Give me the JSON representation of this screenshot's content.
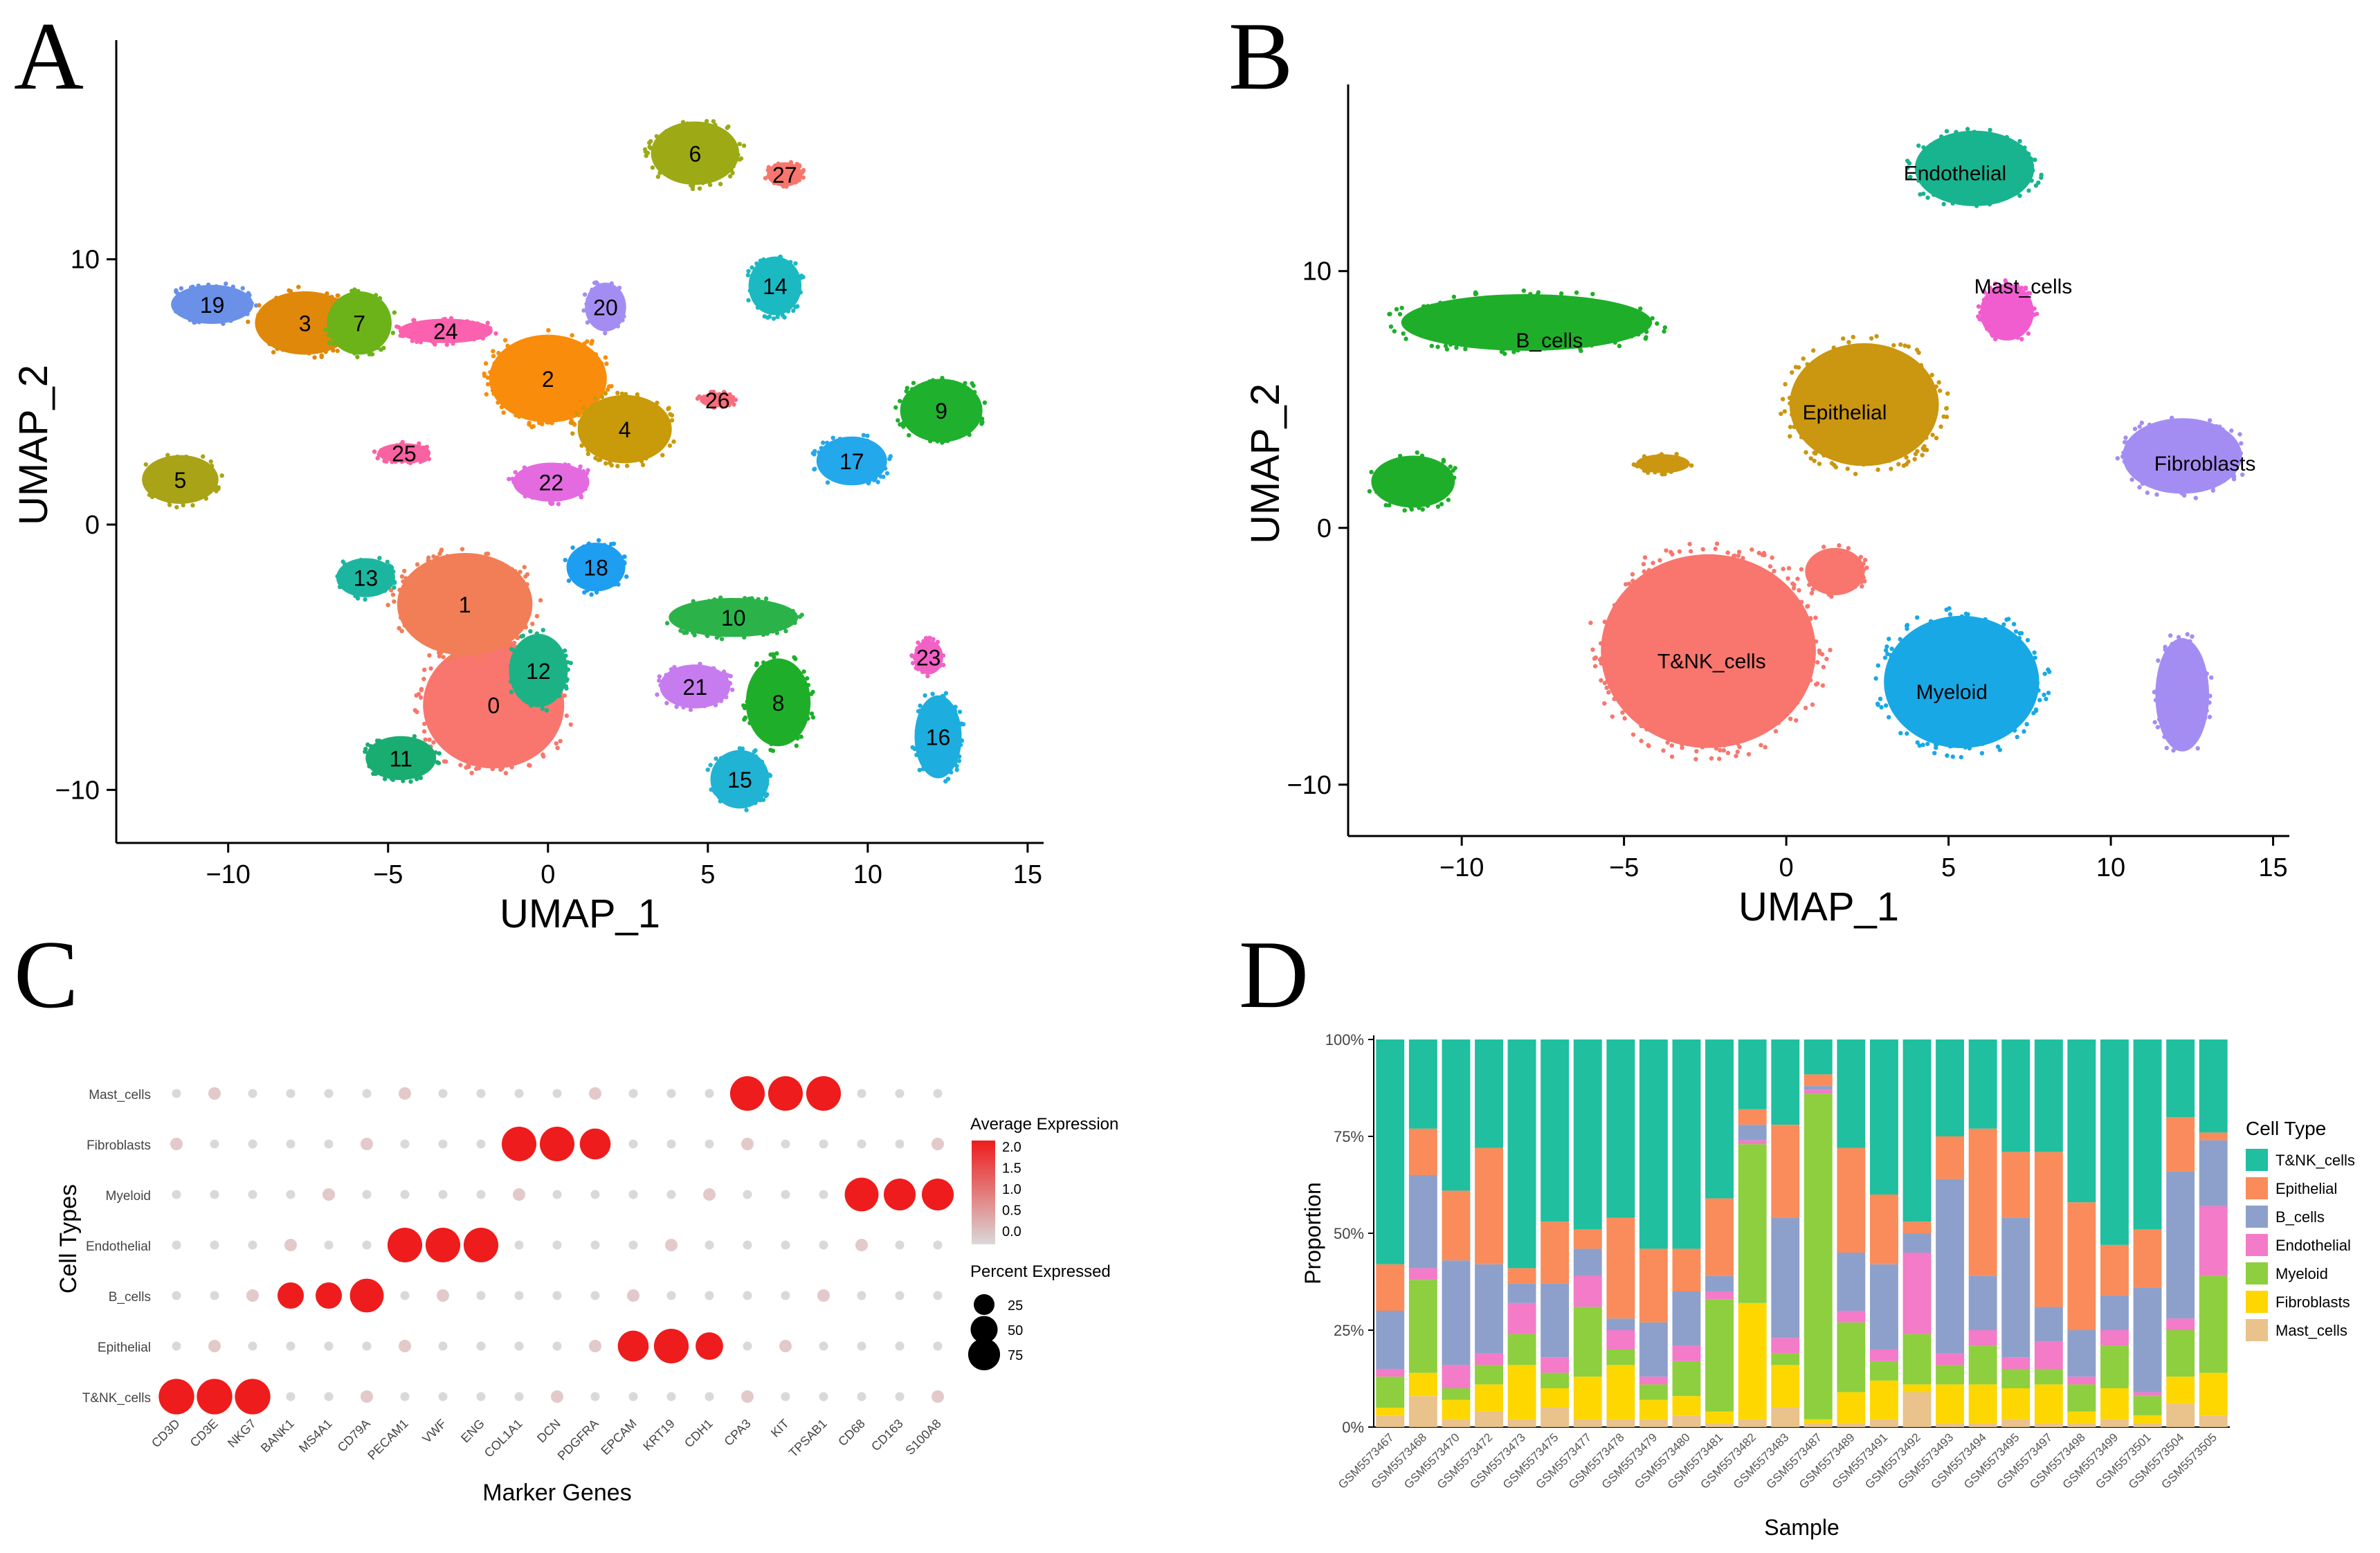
{
  "colors": {
    "c0": "#F8766D",
    "c1": "#F17E56",
    "c2": "#F98C0A",
    "c3": "#E0880A",
    "c4": "#C99A09",
    "c5": "#A9A317",
    "c6": "#9DAA15",
    "c7": "#6CB31A",
    "c8": "#1FAE2A",
    "c9": "#1FB02E",
    "c10": "#2BB34A",
    "c11": "#19AD72",
    "c12": "#1CB286",
    "c13": "#1CB6A0",
    "c14": "#1BB9C2",
    "c15": "#21B3D3",
    "c16": "#1DAEDF",
    "c17": "#23A8EC",
    "c18": "#1E9EF0",
    "c19": "#6A90E8",
    "c20": "#A48DF2",
    "c21": "#C67CEE",
    "c22": "#E46AE0",
    "c23": "#F261C6",
    "c24": "#FB61AE",
    "c25": "#F962A0",
    "c26": "#F86C7C",
    "c27": "#F8766D",
    "tnk": "#F8766D",
    "epi": "#CB9610",
    "bc": "#1FAE2A",
    "myl": "#18A8E6",
    "endo": "#18B48F",
    "mast": "#F15DCF",
    "fib": "#A48DF2",
    "barTNK": "#1FBFA0",
    "barEpi": "#F98C5A",
    "barB": "#8DA0CB",
    "barEndo": "#F37BC7",
    "barMyl": "#8DCF3F",
    "barFib": "#FFD700",
    "barMast": "#E9C28C",
    "dotHigh": "#EE1C1C",
    "dotLow": "#D9D9D9"
  },
  "chart_data": [
    {
      "panel": "A",
      "type": "scatter",
      "title": "",
      "xlabel": "UMAP_1",
      "ylabel": "UMAP_2",
      "xlim": [
        -13.5,
        15.5
      ],
      "ylim": [
        -12,
        18
      ],
      "xticks": [
        -10,
        -5,
        0,
        5,
        10,
        15
      ],
      "yticks": [
        -10,
        0,
        10
      ],
      "x_tick_labels": [
        "−10",
        "−5",
        "0",
        "5",
        "10",
        "15"
      ],
      "y_tick_labels": [
        "−10",
        "0",
        "10"
      ],
      "clusters": [
        {
          "id": "0",
          "x": -1.7,
          "y": -6.8,
          "rx": 2.4,
          "ry": 2.6,
          "color": "c0"
        },
        {
          "id": "1",
          "x": -2.6,
          "y": -3.0,
          "rx": 2.3,
          "ry": 2.1,
          "color": "c1"
        },
        {
          "id": "12",
          "x": -0.3,
          "y": -5.5,
          "rx": 1.0,
          "ry": 1.5,
          "color": "c12"
        },
        {
          "id": "11",
          "x": -4.6,
          "y": -8.8,
          "rx": 1.2,
          "ry": 0.9,
          "color": "c11"
        },
        {
          "id": "13",
          "x": -5.7,
          "y": -2.0,
          "rx": 1.0,
          "ry": 0.8,
          "color": "c13"
        },
        {
          "id": "18",
          "x": 1.5,
          "y": -1.6,
          "rx": 1.0,
          "ry": 1.0,
          "color": "c18"
        },
        {
          "id": "10",
          "x": 5.8,
          "y": -3.5,
          "rx": 2.2,
          "ry": 0.8,
          "color": "c10"
        },
        {
          "id": "8",
          "x": 7.2,
          "y": -6.7,
          "rx": 1.1,
          "ry": 1.8,
          "color": "c8"
        },
        {
          "id": "21",
          "x": 4.6,
          "y": -6.1,
          "rx": 1.2,
          "ry": 0.9,
          "color": "c21"
        },
        {
          "id": "15",
          "x": 6.0,
          "y": -9.6,
          "rx": 1.0,
          "ry": 1.2,
          "color": "c15"
        },
        {
          "id": "23",
          "x": 11.9,
          "y": -5.0,
          "rx": 0.5,
          "ry": 0.7,
          "color": "c23"
        },
        {
          "id": "16",
          "x": 12.2,
          "y": -8.0,
          "rx": 0.8,
          "ry": 1.7,
          "color": "c16"
        },
        {
          "id": "6",
          "x": 4.6,
          "y": 14.0,
          "rx": 1.5,
          "ry": 1.3,
          "color": "c6"
        },
        {
          "id": "27",
          "x": 7.4,
          "y": 13.2,
          "rx": 0.6,
          "ry": 0.5,
          "color": "c27"
        },
        {
          "id": "14",
          "x": 7.1,
          "y": 9.0,
          "rx": 0.9,
          "ry": 1.2,
          "color": "c14"
        },
        {
          "id": "20",
          "x": 1.8,
          "y": 8.2,
          "rx": 0.7,
          "ry": 1.0,
          "color": "c20"
        },
        {
          "id": "2",
          "x": 0.0,
          "y": 5.5,
          "rx": 2.0,
          "ry": 1.8,
          "color": "c2"
        },
        {
          "id": "4",
          "x": 2.4,
          "y": 3.6,
          "rx": 1.6,
          "ry": 1.4,
          "color": "c4"
        },
        {
          "id": "26",
          "x": 5.3,
          "y": 4.7,
          "rx": 0.6,
          "ry": 0.3,
          "color": "c26"
        },
        {
          "id": "22",
          "x": 0.1,
          "y": 1.6,
          "rx": 1.3,
          "ry": 0.8,
          "color": "c22"
        },
        {
          "id": "25",
          "x": -4.5,
          "y": 2.7,
          "rx": 0.9,
          "ry": 0.4,
          "color": "c25"
        },
        {
          "id": "5",
          "x": -11.5,
          "y": 1.7,
          "rx": 1.3,
          "ry": 1.0,
          "color": "c5"
        },
        {
          "id": "19",
          "x": -10.5,
          "y": 8.3,
          "rx": 1.4,
          "ry": 0.8,
          "color": "c19"
        },
        {
          "id": "3",
          "x": -7.6,
          "y": 7.6,
          "rx": 1.7,
          "ry": 1.3,
          "color": "c3"
        },
        {
          "id": "7",
          "x": -5.9,
          "y": 7.6,
          "rx": 1.1,
          "ry": 1.3,
          "color": "c7"
        },
        {
          "id": "24",
          "x": -3.2,
          "y": 7.3,
          "rx": 1.6,
          "ry": 0.5,
          "color": "c24"
        },
        {
          "id": "9",
          "x": 12.3,
          "y": 4.3,
          "rx": 1.4,
          "ry": 1.3,
          "color": "c9"
        },
        {
          "id": "17",
          "x": 9.5,
          "y": 2.4,
          "rx": 1.2,
          "ry": 1.0,
          "color": "c17"
        }
      ]
    },
    {
      "panel": "B",
      "type": "scatter",
      "title": "",
      "xlabel": "UMAP_1",
      "ylabel": "UMAP_2",
      "xlim": [
        -13.5,
        15.5
      ],
      "ylim": [
        -12,
        17
      ],
      "xticks": [
        -10,
        -5,
        0,
        5,
        10,
        15
      ],
      "yticks": [
        -10,
        0,
        10
      ],
      "x_tick_labels": [
        "−10",
        "−5",
        "0",
        "5",
        "10",
        "15"
      ],
      "y_tick_labels": [
        "−10",
        "0",
        "10"
      ],
      "clusters": [
        {
          "id": "Endothelial",
          "x": 5.8,
          "y": 14.0,
          "rx": 2.0,
          "ry": 1.6,
          "color": "endo"
        },
        {
          "id": "Mast_cells",
          "x": 6.8,
          "y": 8.4,
          "rx": 0.9,
          "ry": 1.2,
          "color": "mast"
        },
        {
          "id": "B_cells",
          "x": -8.0,
          "y": 8.0,
          "rx": 4.2,
          "ry": 1.2,
          "color": "bc"
        },
        {
          "id": "B_cells_small",
          "x": -11.5,
          "y": 1.8,
          "rx": 1.4,
          "ry": 1.1,
          "color": "bc"
        },
        {
          "id": "Epithelial",
          "x": 2.4,
          "y": 4.8,
          "rx": 2.5,
          "ry": 2.6,
          "color": "epi"
        },
        {
          "id": "Epithelial_small",
          "x": -3.8,
          "y": 2.5,
          "rx": 0.9,
          "ry": 0.4,
          "color": "epi"
        },
        {
          "id": "Fibroblasts",
          "x": 12.2,
          "y": 2.8,
          "rx": 2.0,
          "ry": 1.6,
          "color": "fib"
        },
        {
          "id": "Fibroblasts_small",
          "x": 12.2,
          "y": -6.5,
          "rx": 0.9,
          "ry": 2.4,
          "color": "fib"
        },
        {
          "id": "T&NK_cells",
          "x": -2.4,
          "y": -4.8,
          "rx": 3.6,
          "ry": 4.1,
          "color": "tnk"
        },
        {
          "id": "T&NK_small",
          "x": 1.5,
          "y": -1.7,
          "rx": 1.0,
          "ry": 1.0,
          "color": "tnk"
        },
        {
          "id": "Myeloid",
          "x": 5.4,
          "y": -6.0,
          "rx": 2.6,
          "ry": 2.8,
          "color": "myl"
        }
      ],
      "labels": [
        {
          "text": "Endothelial",
          "x": 5.2,
          "y": 13.8
        },
        {
          "text": "Mast_cells",
          "x": 7.3,
          "y": 9.4
        },
        {
          "text": "B_cells",
          "x": -7.3,
          "y": 7.3
        },
        {
          "text": "Epithelial",
          "x": 1.8,
          "y": 4.5
        },
        {
          "text": "Fibroblasts",
          "x": 12.9,
          "y": 2.5
        },
        {
          "text": "T&NK_cells",
          "x": -2.3,
          "y": -5.2
        },
        {
          "text": "Myeloid",
          "x": 5.1,
          "y": -6.4
        }
      ]
    },
    {
      "panel": "C",
      "type": "dot",
      "title": "",
      "xlabel": "Marker Genes",
      "ylabel": "Cell Types",
      "genes": [
        "CD3D",
        "CD3E",
        "NKG7",
        "BANK1",
        "MS4A1",
        "CD79A",
        "PECAM1",
        "VWF",
        "ENG",
        "COL1A1",
        "DCN",
        "PDGFRA",
        "EPCAM",
        "KRT19",
        "CDH1",
        "CPA3",
        "KIT",
        "TPSAB1",
        "CD68",
        "CD163",
        "S100A8"
      ],
      "cell_types": [
        "T&NK_cells",
        "Epithelial",
        "B_cells",
        "Endothelial",
        "Myeloid",
        "Fibroblasts",
        "Mast_cells"
      ],
      "highlights": [
        {
          "cell_type": "T&NK_cells",
          "genes": [
            "CD3D",
            "CD3E",
            "NKG7"
          ],
          "expr": 2.0,
          "pct": 80
        },
        {
          "cell_type": "B_cells",
          "genes": [
            "BANK1",
            "MS4A1"
          ],
          "expr": 2.0,
          "pct": 35
        },
        {
          "cell_type": "B_cells",
          "genes": [
            "CD79A"
          ],
          "expr": 2.0,
          "pct": 70
        },
        {
          "cell_type": "Endothelial",
          "genes": [
            "PECAM1",
            "VWF",
            "ENG"
          ],
          "expr": 2.0,
          "pct": 75
        },
        {
          "cell_type": "Fibroblasts",
          "genes": [
            "COL1A1",
            "DCN"
          ],
          "expr": 2.0,
          "pct": 75
        },
        {
          "cell_type": "Fibroblasts",
          "genes": [
            "PDGFRA"
          ],
          "expr": 2.0,
          "pct": 55
        },
        {
          "cell_type": "Epithelial",
          "genes": [
            "EPCAM"
          ],
          "expr": 2.0,
          "pct": 55
        },
        {
          "cell_type": "Epithelial",
          "genes": [
            "KRT19"
          ],
          "expr": 2.0,
          "pct": 75
        },
        {
          "cell_type": "Epithelial",
          "genes": [
            "CDH1"
          ],
          "expr": 2.0,
          "pct": 40
        },
        {
          "cell_type": "Mast_cells",
          "genes": [
            "CPA3",
            "KIT",
            "TPSAB1"
          ],
          "expr": 2.0,
          "pct": 75
        },
        {
          "cell_type": "Myeloid",
          "genes": [
            "CD68"
          ],
          "expr": 2.0,
          "pct": 70
        },
        {
          "cell_type": "Myeloid",
          "genes": [
            "CD163",
            "S100A8"
          ],
          "expr": 2.0,
          "pct": 60
        }
      ],
      "legend_color_title": "Average Expression",
      "legend_color_ticks": [
        "2.0",
        "1.5",
        "1.0",
        "0.5",
        "0.0"
      ],
      "legend_size_title": "Percent Expressed",
      "legend_size_ticks": [
        "25",
        "50",
        "75"
      ]
    },
    {
      "panel": "D",
      "type": "bar",
      "stacked": true,
      "title": "",
      "xlabel": "Sample",
      "ylabel": "Proportion",
      "ylim": [
        0,
        1
      ],
      "y_tick_labels": [
        "0%",
        "25%",
        "50%",
        "75%",
        "100%"
      ],
      "categories": [
        "GSM5573467",
        "GSM5573468",
        "GSM5573470",
        "GSM5573472",
        "GSM5573473",
        "GSM5573475",
        "GSM5573477",
        "GSM5573478",
        "GSM5573479",
        "GSM5573480",
        "GSM5573481",
        "GSM5573482",
        "GSM5573483",
        "GSM5573487",
        "GSM5573489",
        "GSM5573491",
        "GSM5573492",
        "GSM5573493",
        "GSM5573494",
        "GSM5573495",
        "GSM5573497",
        "GSM5573498",
        "GSM5573499",
        "GSM5573501",
        "GSM5573504",
        "GSM5573505"
      ],
      "legend_title": "Cell Type",
      "series": [
        {
          "name": "Mast_cells",
          "color": "barMast",
          "values": [
            0.03,
            0.08,
            0.02,
            0.04,
            0.02,
            0.05,
            0.02,
            0.02,
            0.02,
            0.03,
            0.01,
            0.02,
            0.05,
            0.01,
            0.01,
            0.02,
            0.09,
            0.01,
            0.01,
            0.02,
            0.01,
            0.01,
            0.02,
            0.01,
            0.06,
            0.03
          ]
        },
        {
          "name": "Fibroblasts",
          "color": "barFib",
          "values": [
            0.02,
            0.06,
            0.05,
            0.07,
            0.14,
            0.05,
            0.11,
            0.14,
            0.05,
            0.05,
            0.03,
            0.3,
            0.11,
            0.01,
            0.08,
            0.1,
            0.02,
            0.1,
            0.1,
            0.08,
            0.1,
            0.03,
            0.08,
            0.02,
            0.07,
            0.11
          ]
        },
        {
          "name": "Myeloid",
          "color": "barMyl",
          "values": [
            0.08,
            0.24,
            0.03,
            0.05,
            0.08,
            0.04,
            0.18,
            0.04,
            0.04,
            0.09,
            0.29,
            0.41,
            0.03,
            0.84,
            0.18,
            0.05,
            0.13,
            0.05,
            0.1,
            0.05,
            0.04,
            0.07,
            0.11,
            0.05,
            0.12,
            0.25
          ]
        },
        {
          "name": "Endothelial",
          "color": "barEndo",
          "values": [
            0.02,
            0.03,
            0.06,
            0.03,
            0.08,
            0.04,
            0.08,
            0.05,
            0.02,
            0.04,
            0.02,
            0.01,
            0.04,
            0.01,
            0.03,
            0.03,
            0.21,
            0.03,
            0.04,
            0.03,
            0.07,
            0.02,
            0.04,
            0.01,
            0.03,
            0.18
          ]
        },
        {
          "name": "B_cells",
          "color": "barB",
          "values": [
            0.15,
            0.24,
            0.27,
            0.23,
            0.05,
            0.19,
            0.07,
            0.03,
            0.14,
            0.14,
            0.04,
            0.04,
            0.31,
            0.01,
            0.15,
            0.22,
            0.05,
            0.45,
            0.14,
            0.36,
            0.09,
            0.12,
            0.09,
            0.27,
            0.38,
            0.17
          ]
        },
        {
          "name": "Epithelial",
          "color": "barEpi",
          "values": [
            0.12,
            0.12,
            0.18,
            0.3,
            0.04,
            0.16,
            0.05,
            0.26,
            0.19,
            0.11,
            0.2,
            0.04,
            0.24,
            0.03,
            0.27,
            0.18,
            0.03,
            0.11,
            0.38,
            0.17,
            0.4,
            0.33,
            0.13,
            0.15,
            0.14,
            0.02
          ]
        },
        {
          "name": "T&NK_cells",
          "color": "barTNK",
          "values": [
            0.58,
            0.23,
            0.39,
            0.28,
            0.59,
            0.47,
            0.49,
            0.46,
            0.54,
            0.54,
            0.41,
            0.18,
            0.22,
            0.09,
            0.28,
            0.4,
            0.47,
            0.25,
            0.23,
            0.29,
            0.29,
            0.42,
            0.53,
            0.49,
            0.2,
            0.24
          ]
        }
      ],
      "legend_order": [
        "T&NK_cells",
        "Epithelial",
        "B_cells",
        "Endothelial",
        "Myeloid",
        "Fibroblasts",
        "Mast_cells"
      ]
    }
  ],
  "panels": {
    "a": "A",
    "b": "B",
    "c": "C",
    "d": "D"
  }
}
